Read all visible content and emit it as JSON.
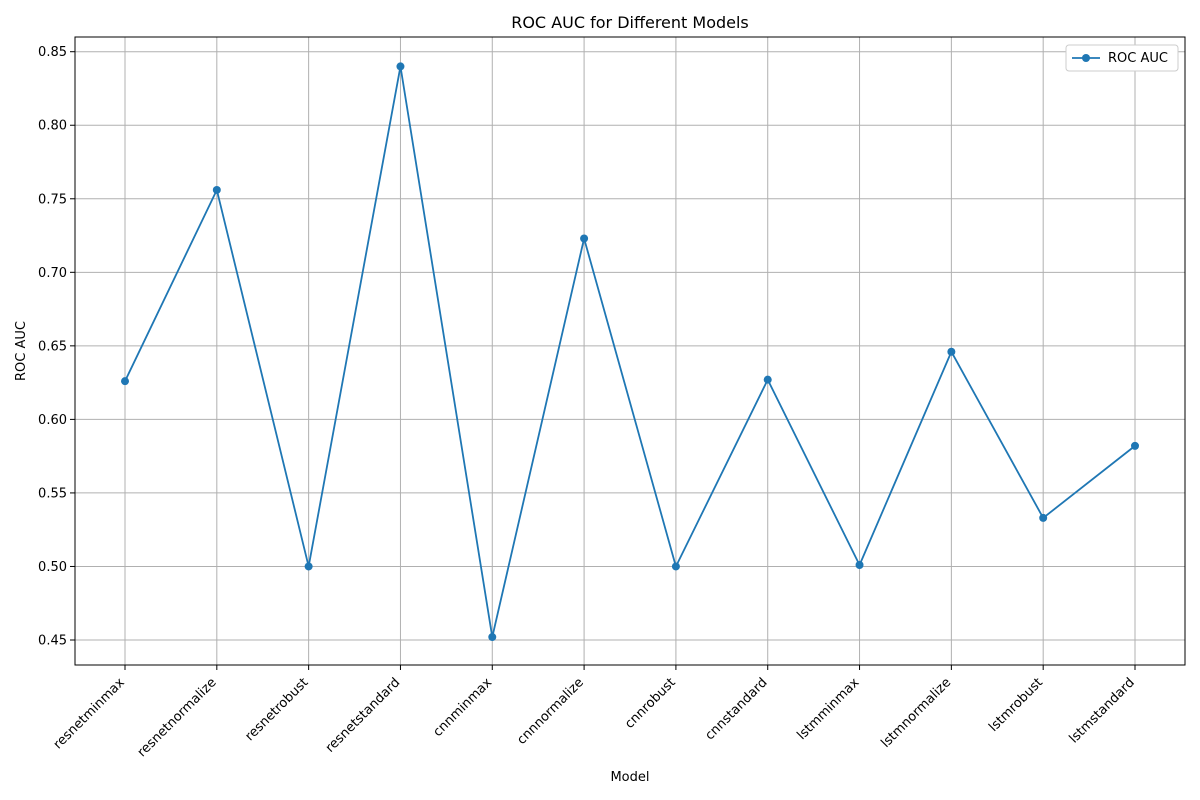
{
  "chart_data": {
    "type": "line",
    "title": "ROC AUC for Different Models",
    "xlabel": "Model",
    "ylabel": "ROC AUC",
    "categories": [
      "resnetminmax",
      "resnetnormalize",
      "resnetrobust",
      "resnetstandard",
      "cnnminmax",
      "cnnnormalize",
      "cnnrobust",
      "cnnstandard",
      "lstmminmax",
      "lstmnormalize",
      "lstmrobust",
      "lstmstandard"
    ],
    "series": [
      {
        "name": "ROC AUC",
        "color": "#1f77b4",
        "marker": "circle",
        "values": [
          0.626,
          0.756,
          0.5,
          0.84,
          0.452,
          0.723,
          0.5,
          0.627,
          0.501,
          0.646,
          0.533,
          0.582
        ]
      }
    ],
    "ylim": [
      0.433,
      0.86
    ],
    "yticks": [
      "0.45",
      "0.50",
      "0.55",
      "0.60",
      "0.65",
      "0.70",
      "0.75",
      "0.80",
      "0.85"
    ],
    "grid": true,
    "legend_position": "top-right",
    "xtick_rotation": 45
  }
}
